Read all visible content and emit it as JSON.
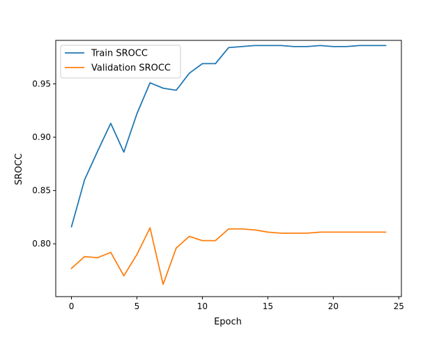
{
  "chart_data": {
    "type": "line",
    "title": "",
    "xlabel": "Epoch",
    "ylabel": "SROCC",
    "xlim": [
      -1.2,
      25.2
    ],
    "ylim": [
      0.7505,
      0.9908
    ],
    "xticks": [
      0,
      5,
      10,
      15,
      20,
      25
    ],
    "xtick_labels": [
      "0",
      "5",
      "10",
      "15",
      "20",
      "25"
    ],
    "yticks": [
      0.8,
      0.85,
      0.9,
      0.95
    ],
    "ytick_labels": [
      "0.80",
      "0.85",
      "0.90",
      "0.95"
    ],
    "grid": false,
    "legend_position": "top-left",
    "x": [
      0,
      1,
      2,
      3,
      4,
      5,
      6,
      7,
      8,
      9,
      10,
      11,
      12,
      13,
      14,
      15,
      16,
      17,
      18,
      19,
      20,
      21,
      22,
      23,
      24
    ],
    "series": [
      {
        "name": "Train SROCC",
        "color": "#1f77b4",
        "values": [
          0.816,
          0.86,
          0.887,
          0.913,
          0.886,
          0.922,
          0.951,
          0.946,
          0.944,
          0.96,
          0.969,
          0.969,
          0.984,
          0.985,
          0.986,
          0.986,
          0.986,
          0.985,
          0.985,
          0.986,
          0.985,
          0.985,
          0.986,
          0.986,
          0.986
        ]
      },
      {
        "name": "Validation SROCC",
        "color": "#ff7f0e",
        "values": [
          0.777,
          0.788,
          0.787,
          0.792,
          0.77,
          0.79,
          0.815,
          0.762,
          0.796,
          0.807,
          0.803,
          0.803,
          0.814,
          0.814,
          0.813,
          0.811,
          0.81,
          0.81,
          0.81,
          0.811,
          0.811,
          0.811,
          0.811,
          0.811,
          0.811
        ]
      }
    ]
  }
}
